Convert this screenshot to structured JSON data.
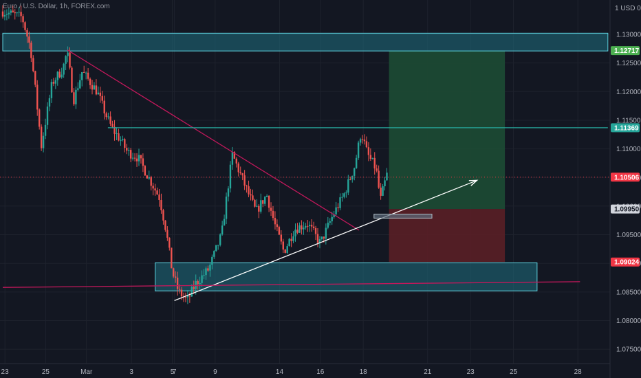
{
  "window": {
    "title": "Euro / U.S. Dollar, 1h, FOREX.com",
    "currency_label": "1 USD 0"
  },
  "colors": {
    "background": "#131722",
    "grid": "#1e222d",
    "up": "#26a69a",
    "down": "#ef5350",
    "zone_fill": "#1f6f80",
    "zone_stroke": "#5fd3e0",
    "target_fill": "#1d4b34",
    "stop_fill": "#5a1f26",
    "trendline": "#c2185b",
    "support_line": "#ffffff",
    "resistance_line": "#26a69a",
    "tag_green": "#4caf50",
    "tag_teal": "#26a69a",
    "tag_red": "#f23645",
    "tag_grey": "#d1d4dc"
  },
  "chart_data": {
    "type": "candlestick",
    "title": "Euro / U.S. Dollar, 1h, FOREX.com",
    "ylim": [
      1.0725,
      1.1348
    ],
    "xlim": [
      0,
      28.2
    ],
    "y_ticks": [
      "1.07500",
      "1.08000",
      "1.08500",
      "1.09000",
      "1.09500",
      "1.10000",
      "1.10500",
      "1.11000",
      "1.11500",
      "1.12000",
      "1.12500",
      "1.13000"
    ],
    "y_tick_values": [
      1.075,
      1.08,
      1.085,
      1.09,
      1.095,
      1.1,
      1.105,
      1.11,
      1.115,
      1.12,
      1.125,
      1.13
    ],
    "x_ticks": [
      {
        "label": "23",
        "x": 0.1
      },
      {
        "label": "25",
        "x": 2.0
      },
      {
        "label": "Mar",
        "x": 3.9
      },
      {
        "label": "3",
        "x": 6.0
      },
      {
        "label": "5",
        "x": 7.9
      },
      {
        "label": "7",
        "x": 8.0
      },
      {
        "label": "9",
        "x": 9.9
      },
      {
        "label": "14",
        "x": 12.9
      },
      {
        "label": "16",
        "x": 14.8
      },
      {
        "label": "18",
        "x": 16.8
      },
      {
        "label": "21",
        "x": 19.8
      },
      {
        "label": "23",
        "x": 21.8
      },
      {
        "label": "25",
        "x": 23.8
      },
      {
        "label": "28",
        "x": 26.8
      }
    ],
    "price_path": [
      [
        0.0,
        1.134
      ],
      [
        0.9,
        1.133
      ],
      [
        1.3,
        1.1275
      ],
      [
        1.5,
        1.121
      ],
      [
        1.8,
        1.1105
      ],
      [
        2.3,
        1.1215
      ],
      [
        2.8,
        1.124
      ],
      [
        3.0,
        1.127
      ],
      [
        3.3,
        1.1185
      ],
      [
        3.7,
        1.1235
      ],
      [
        4.4,
        1.12
      ],
      [
        4.8,
        1.116
      ],
      [
        5.1,
        1.1135
      ],
      [
        5.5,
        1.1115
      ],
      [
        5.8,
        1.1095
      ],
      [
        6.3,
        1.1085
      ],
      [
        6.8,
        1.105
      ],
      [
        7.3,
        1.1015
      ],
      [
        7.6,
        1.096
      ],
      [
        7.9,
        1.0885
      ],
      [
        8.2,
        1.085
      ],
      [
        8.6,
        1.0835
      ],
      [
        9.0,
        1.0865
      ],
      [
        9.6,
        1.089
      ],
      [
        10.2,
        1.095
      ],
      [
        10.7,
        1.109
      ],
      [
        11.3,
        1.1035
      ],
      [
        11.8,
        1.099
      ],
      [
        12.3,
        1.102
      ],
      [
        12.7,
        1.0965
      ],
      [
        13.1,
        1.092
      ],
      [
        13.6,
        1.096
      ],
      [
        14.2,
        1.097
      ],
      [
        14.8,
        1.0935
      ],
      [
        15.4,
        1.0985
      ],
      [
        15.9,
        1.102
      ],
      [
        16.4,
        1.107
      ],
      [
        16.7,
        1.113
      ],
      [
        17.0,
        1.109
      ],
      [
        17.4,
        1.1065
      ],
      [
        17.6,
        1.101
      ],
      [
        17.9,
        1.1055
      ]
    ],
    "candle_range": [
      0,
      17.9
    ],
    "candle_count": 190,
    "zones": [
      {
        "name": "resistance-zone",
        "y1": 1.1271,
        "y2": 1.1302,
        "x1": 0.0,
        "x2": 28.2
      },
      {
        "name": "support-zone",
        "y1": 1.0852,
        "y2": 1.0901,
        "x1": 7.1,
        "x2": 24.9
      }
    ],
    "position": {
      "type": "long",
      "x1": 18.0,
      "x2": 23.4,
      "target": 1.12717,
      "entry": 1.0995,
      "stop": 1.09024
    },
    "lines": [
      {
        "name": "descending-trendline",
        "x1": 3.0,
        "y1": 1.1273,
        "x2": 16.6,
        "y2": 1.0958,
        "color": "trendline"
      },
      {
        "name": "ascending-trendline",
        "x1": 8.0,
        "y1": 1.0835,
        "x2": 22.1,
        "y2": 1.1045,
        "color": "support_line",
        "arrow": true
      },
      {
        "name": "horizontal-resistance",
        "x1": 4.9,
        "y1": 1.11369,
        "x2": 28.2,
        "y2": 1.11369,
        "color": "resistance_line"
      },
      {
        "name": "sloped-support-line",
        "x1": 0.0,
        "y1": 1.0858,
        "x2": 26.9,
        "y2": 1.0868,
        "color": "trendline"
      }
    ],
    "entry_box": {
      "x1": 17.3,
      "x2": 20.0,
      "y1": 1.0979,
      "y2": 1.0986
    },
    "current_price": 1.10506,
    "price_tags": [
      {
        "label": "1.12717",
        "value": 1.12717,
        "color": "tag_green",
        "text_color": "#ffffff"
      },
      {
        "label": "1.11369",
        "value": 1.11369,
        "color": "tag_teal",
        "text_color": "#ffffff"
      },
      {
        "label": "1.10506",
        "value": 1.10506,
        "color": "tag_red",
        "text_color": "#ffffff"
      },
      {
        "label": "1.09950",
        "value": 1.0995,
        "color": "tag_grey",
        "text_color": "#131722"
      },
      {
        "label": "1.09024",
        "value": 1.09024,
        "color": "tag_red",
        "text_color": "#ffffff"
      }
    ]
  }
}
